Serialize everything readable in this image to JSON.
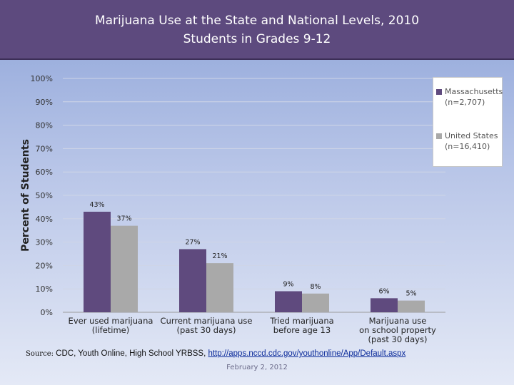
{
  "title": {
    "line1": "Marijuana Use at the State and National Levels, 2010",
    "line2": "Students in Grades 9-12"
  },
  "colors": {
    "massachusetts": "#5f4a7e",
    "united_states": "#a9a9a9",
    "title_bg": "#5d4a7e"
  },
  "chart_data": {
    "type": "bar",
    "ylabel": "Percent of Students",
    "xlabel": "",
    "ylim": [
      0,
      100
    ],
    "yticks": [
      0,
      10,
      20,
      30,
      40,
      50,
      60,
      70,
      80,
      90,
      100
    ],
    "ytick_labels": [
      "0%",
      "10%",
      "20%",
      "30%",
      "40%",
      "50%",
      "60%",
      "70%",
      "80%",
      "90%",
      "100%"
    ],
    "grid": true,
    "legend_position": "top-right",
    "categories": [
      [
        "Ever used marijuana",
        "(lifetime)"
      ],
      [
        "Current marijuana use",
        "(past 30 days)"
      ],
      [
        "Tried marijuana",
        "before age 13"
      ],
      [
        "Marijuana use",
        "on school property",
        "(past 30 days)"
      ]
    ],
    "series": [
      {
        "name": "Massachusetts (n=2,707)",
        "legend_lines": [
          "Massachusetts",
          "(n=2,707)"
        ],
        "values": [
          43,
          27,
          9,
          6
        ],
        "labels": [
          "43%",
          "27%",
          "9%",
          "6%"
        ]
      },
      {
        "name": "United States (n=16,410)",
        "legend_lines": [
          "United States",
          "(n=16,410)"
        ],
        "values": [
          37,
          21,
          8,
          5
        ],
        "labels": [
          "37%",
          "21%",
          "8%",
          "5%"
        ]
      }
    ]
  },
  "source": {
    "prefix": "Source:",
    "text": " CDC, Youth Online, High School YRBSS, ",
    "link": "http://apps.nccd.cdc.gov/youthonline/App/Default.aspx"
  },
  "footer": {
    "date": "February 2, 2012"
  }
}
